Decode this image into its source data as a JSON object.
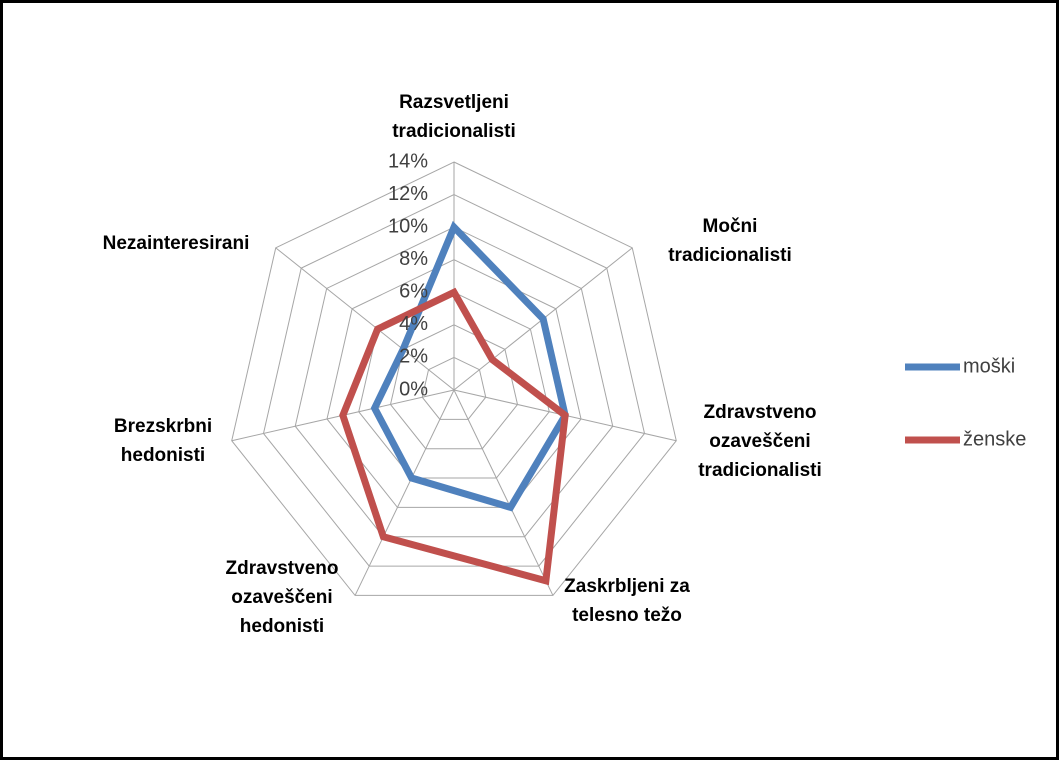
{
  "chart_data": {
    "type": "radar",
    "categories": [
      "Razsvetljeni tradicionalisti",
      "Močni tradicionalisti",
      "Zdravstveno ozaveščeni tradicionalisti",
      "Zaskrbljeni za telesno težo",
      "Zdravstveno ozaveščeni hedonisti",
      "Brezskrbni hedonisti",
      "Nezainteresirani"
    ],
    "series": [
      {
        "name": "moški",
        "color": "#4f81bd",
        "values": [
          10,
          7,
          7,
          8,
          6,
          5,
          4
        ]
      },
      {
        "name": "ženske",
        "color": "#c0504d",
        "values": [
          6,
          3,
          7,
          13,
          10,
          7,
          6
        ]
      }
    ],
    "ylim": [
      0,
      14
    ],
    "yticks": [
      {
        "value": 0,
        "label": "0%"
      },
      {
        "value": 2,
        "label": "2%"
      },
      {
        "value": 4,
        "label": "4%"
      },
      {
        "value": 6,
        "label": "6%"
      },
      {
        "value": 8,
        "label": "8%"
      },
      {
        "value": 10,
        "label": "10%"
      },
      {
        "value": 12,
        "label": "12%"
      },
      {
        "value": 14,
        "label": "14%"
      }
    ],
    "grid": true,
    "legend": "right"
  }
}
